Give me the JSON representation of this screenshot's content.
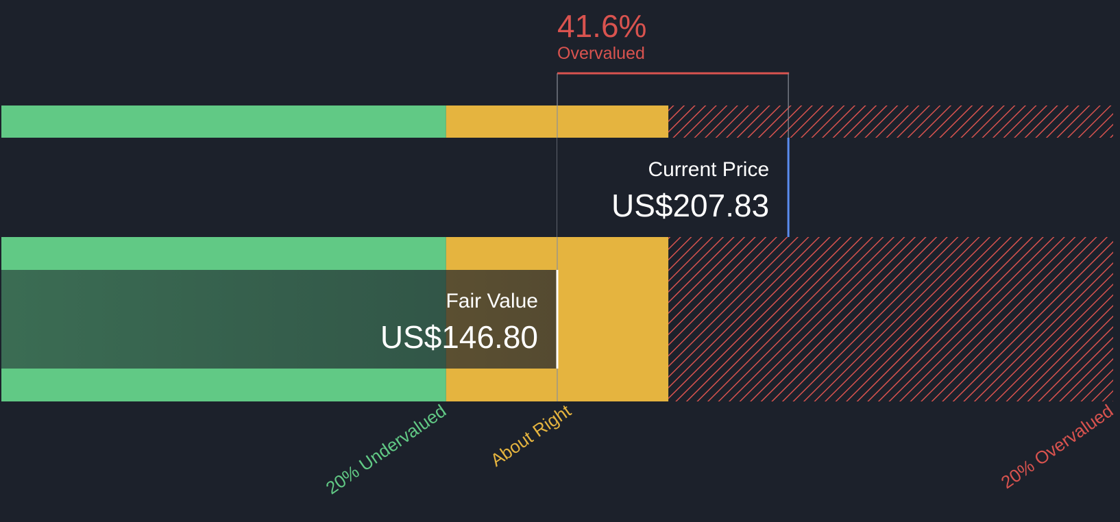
{
  "chart_data": {
    "type": "bar",
    "title": "",
    "current_price": {
      "label": "Current Price",
      "value": 207.83,
      "display": "US$207.83"
    },
    "fair_value": {
      "label": "Fair Value",
      "value": 146.8,
      "display": "US$146.80"
    },
    "difference": {
      "percent_text": "41.6%",
      "label": "Overvalued",
      "percent": 41.6
    },
    "zones": [
      {
        "name": "undervalued",
        "label": "20% Undervalued",
        "color": "#61c985",
        "from": 0,
        "to": 117.44
      },
      {
        "name": "about-right",
        "label": "About Right",
        "color": "#e5b43f",
        "from": 117.44,
        "to": 176.16
      },
      {
        "name": "overvalued",
        "label": "20% Overvalued",
        "color": "#d9534f",
        "from": 176.16,
        "to": 293.6
      }
    ],
    "xlim": [
      0,
      293.6
    ]
  },
  "colors": {
    "background": "#1c212b",
    "green": "#61c985",
    "yellow": "#e5b43f",
    "red": "#d9534f",
    "blue_marker": "#5b8def",
    "fair_value_overlay": "#2c4a3e",
    "price_box": "#1c212b"
  }
}
